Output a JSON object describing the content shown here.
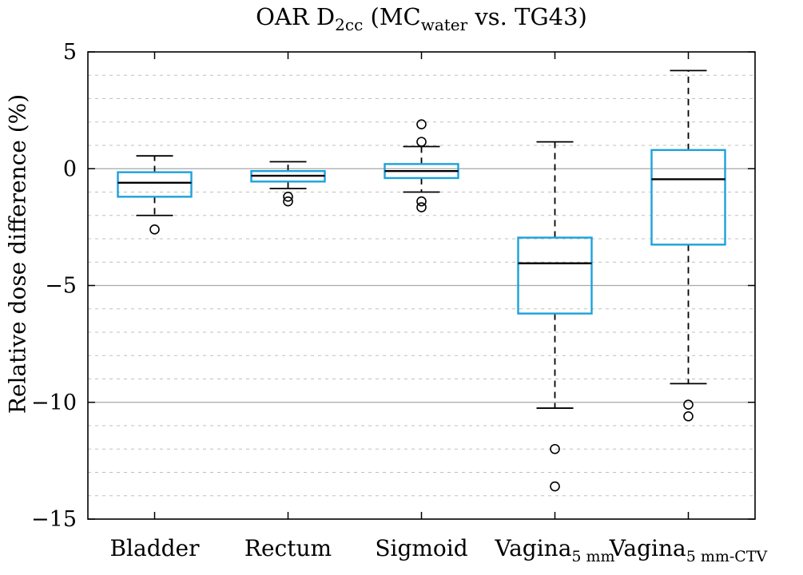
{
  "chart_data": {
    "type": "boxplot",
    "title": "OAR D2cc (MCwater vs. TG43)",
    "title_parts": [
      {
        "text": "OAR D"
      },
      {
        "text": "2cc",
        "sub": true
      },
      {
        "text": " (MC"
      },
      {
        "text": "water",
        "sub": true
      },
      {
        "text": " vs. TG43)"
      }
    ],
    "ylabel": "Relative dose difference (%)",
    "ylim": [
      -15,
      5
    ],
    "yticks": [
      5,
      0,
      -5,
      -10,
      -15
    ],
    "major_gridlines": [
      0,
      -5,
      -10
    ],
    "minor_grid_step": 1,
    "grid": true,
    "box_color": "#1BA1DC",
    "median_color": "#000000",
    "whisker_color": "#000000",
    "categories": [
      {
        "label": "Bladder",
        "sub": ""
      },
      {
        "label": "Rectum",
        "sub": ""
      },
      {
        "label": "Sigmoid",
        "sub": ""
      },
      {
        "label": "Vagina",
        "sub": "5 mm"
      },
      {
        "label": "Vagina",
        "sub": "5 mm-CTV"
      }
    ],
    "series": [
      {
        "name": "Bladder",
        "whisker_low": -2.0,
        "q1": -1.2,
        "median": -0.6,
        "q3": -0.15,
        "whisker_high": 0.55,
        "outliers": [
          -2.6
        ]
      },
      {
        "name": "Rectum",
        "whisker_low": -0.85,
        "q1": -0.55,
        "median": -0.3,
        "q3": -0.1,
        "whisker_high": 0.3,
        "outliers": [
          -1.2,
          -1.4
        ]
      },
      {
        "name": "Sigmoid",
        "whisker_low": -1.0,
        "q1": -0.4,
        "median": -0.1,
        "q3": 0.2,
        "whisker_high": 0.95,
        "outliers": [
          1.9,
          1.15,
          -1.4,
          -1.65
        ]
      },
      {
        "name": "Vagina 5 mm",
        "whisker_low": -10.25,
        "q1": -6.2,
        "median": -4.05,
        "q3": -2.95,
        "whisker_high": 1.15,
        "outliers": [
          -12.0,
          -13.6
        ]
      },
      {
        "name": "Vagina 5 mm-CTV",
        "whisker_low": -9.2,
        "q1": -3.25,
        "median": -0.45,
        "q3": 0.8,
        "whisker_high": 4.2,
        "outliers": [
          -10.1,
          -10.6
        ]
      }
    ]
  }
}
